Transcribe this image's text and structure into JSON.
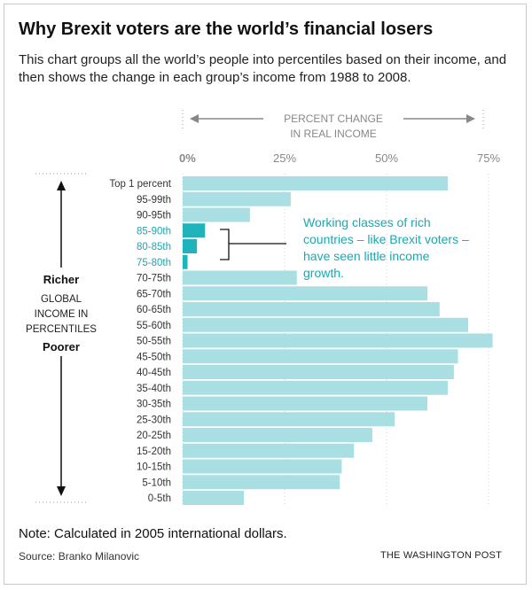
{
  "title": "Why Brexit voters are the world’s financial losers",
  "subtitle": "This chart groups all the world’s people into percentiles based on their income, and then shows the change in each group’s income from 1988 to 2008.",
  "note": "Note: Calculated in 2005 international dollars.",
  "source": "Source: Branko Milanovic",
  "credit": "THE WASHINGTON POST",
  "colors": {
    "bar": "#a9dfe3",
    "highlight": "#1fb3bb",
    "highlight_text": "#19a9b2",
    "axis_text": "#888888"
  },
  "chart_data": {
    "type": "bar",
    "orientation": "horizontal",
    "axis_title": [
      "PERCENT CHANGE",
      "IN REAL INCOME"
    ],
    "x_ticks": [
      0,
      25,
      50,
      75
    ],
    "x_tick_labels": [
      "0%",
      "25%",
      "50%",
      "75%"
    ],
    "xlim": [
      0,
      76
    ],
    "grid": true,
    "categories": [
      "Top 1 percent",
      "95-99th",
      "90-95th",
      "85-90th",
      "80-85th",
      "75-80th",
      "70-75th",
      "65-70th",
      "60-65th",
      "55-60th",
      "50-55th",
      "45-50th",
      "40-45th",
      "35-40th",
      "30-35th",
      "25-30th",
      "20-25th",
      "15-20th",
      "10-15th",
      "5-10th",
      "0-5th"
    ],
    "values": [
      65,
      26.5,
      16.5,
      5.5,
      3.5,
      1.2,
      28,
      60,
      63,
      70,
      76,
      67.5,
      66.5,
      65,
      60,
      52,
      46.5,
      42,
      39,
      38.5,
      15
    ],
    "highlighted": [
      "85-90th",
      "80-85th",
      "75-80th"
    ],
    "annotation": [
      "Working classes of rich",
      "countries – like Brexit voters –",
      "have seen little income",
      "growth."
    ],
    "y_axis": {
      "top": "Richer",
      "middle": [
        "GLOBAL",
        "INCOME IN",
        "PERCENTILES"
      ],
      "bottom": "Poorer"
    }
  }
}
